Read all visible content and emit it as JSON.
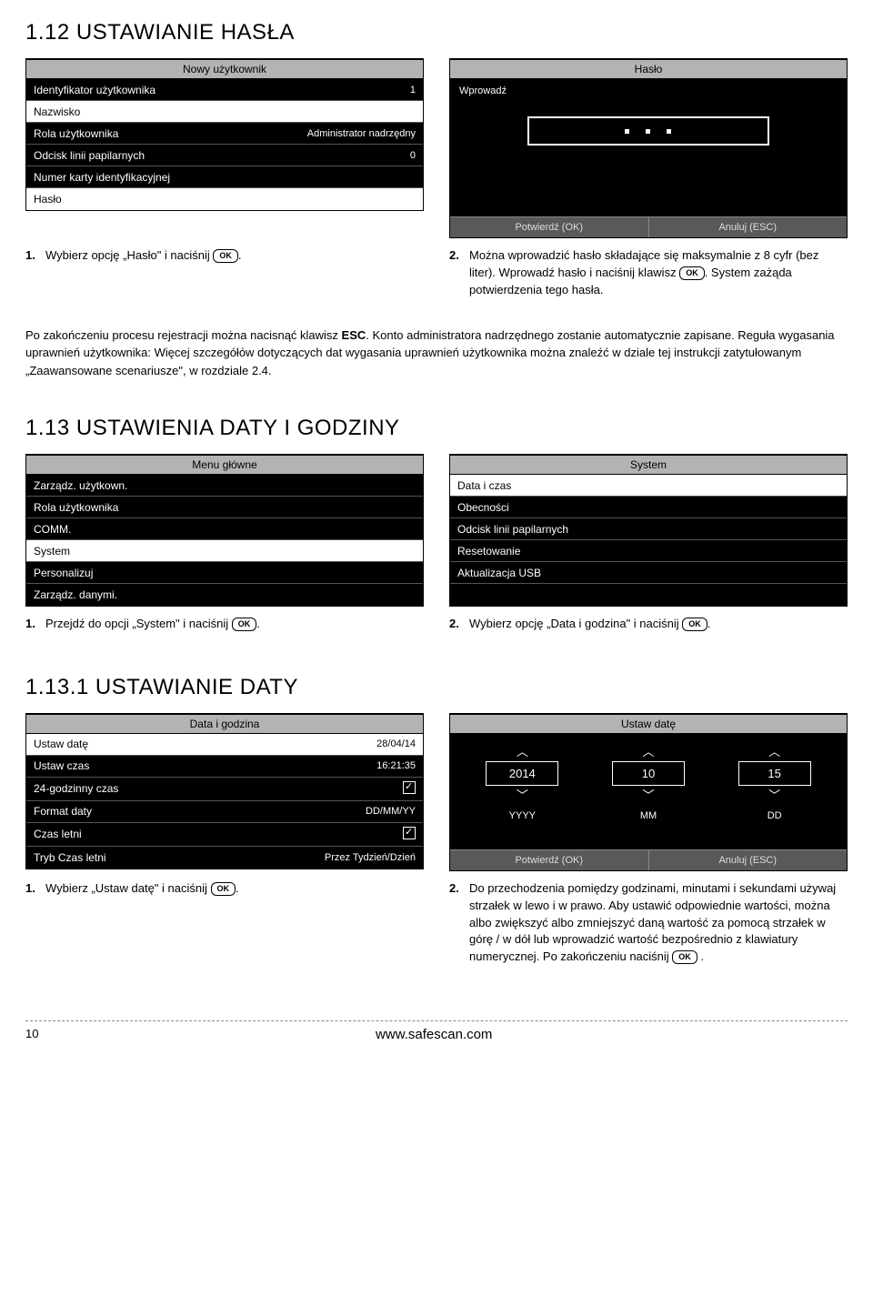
{
  "s112": {
    "heading": "1.12 USTAWIANIE HASŁA",
    "left_panel": {
      "title": "Nowy użytkownik",
      "rows": [
        {
          "label": "Identyfikator użytkownika",
          "value": "1",
          "white": false
        },
        {
          "label": "Nazwisko",
          "value": "",
          "white": true
        },
        {
          "label": "Rola użytkownika",
          "value": "Administrator nadrzędny",
          "white": false
        },
        {
          "label": "Odcisk linii papilarnych",
          "value": "0",
          "white": false
        },
        {
          "label": "Numer karty identyfikacyjnej",
          "value": "",
          "white": false
        },
        {
          "label": "Hasło",
          "value": "",
          "white": true
        }
      ]
    },
    "right_panel": {
      "title": "Hasło",
      "subtitle": "Wprowadź",
      "confirm": "Potwierdź (OK)",
      "cancel": "Anuluj (ESC)"
    },
    "instr1_pre": "Wybierz opcję „Hasło\" i naciśnij ",
    "instr1_post": ".",
    "instr2_a": "Można wprowadzić hasło składające się maksymalnie z 8 cyfr (bez liter). Wprowadź hasło i naciśnij klawisz ",
    "instr2_b": ". System zażąda potwierdzenia tego hasła.",
    "paragraph": "Po zakończeniu procesu rejestracji można nacisnąć klawisz ESC. Konto administratora nadrzędnego zostanie automatycznie zapisane. Reguła wygasania uprawnień użytkownika: Więcej szczegółów dotyczących dat wygasania uprawnień użytkownika można znaleźć w dziale tej instrukcji zatytułowanym „Zaawansowane scenariusze\", w rozdziale 2.4."
  },
  "s113": {
    "heading": "1.13 USTAWIENIA DATY I GODZINY",
    "left_panel": {
      "title": "Menu główne",
      "rows": [
        {
          "label": "Zarządz. użytkown.",
          "white": false
        },
        {
          "label": "Rola użytkownika",
          "white": false
        },
        {
          "label": "COMM.",
          "white": false
        },
        {
          "label": "System",
          "white": true
        },
        {
          "label": "Personalizuj",
          "white": false
        },
        {
          "label": "Zarządz. danymi.",
          "white": false
        }
      ]
    },
    "right_panel": {
      "title": "System",
      "rows": [
        {
          "label": "Data i czas",
          "white": true
        },
        {
          "label": "Obecności",
          "white": false
        },
        {
          "label": "Odcisk linii papilarnych",
          "white": false
        },
        {
          "label": "Resetowanie",
          "white": false
        },
        {
          "label": "Aktualizacja USB",
          "white": false
        },
        {
          "label": "",
          "white": false
        }
      ]
    },
    "instr1_pre": "Przejdź do opcji „System\" i naciśnij ",
    "instr2_pre": "Wybierz opcję „Data i godzina\" i naciśnij "
  },
  "s1131": {
    "heading": "1.13.1 USTAWIANIE DATY",
    "left_panel": {
      "title": "Data i godzina",
      "rows": [
        {
          "label": "Ustaw datę",
          "value": "28/04/14",
          "white": true
        },
        {
          "label": "Ustaw czas",
          "value": "16:21:35",
          "white": false
        },
        {
          "label": "24-godzinny czas",
          "value": "chk",
          "white": false
        },
        {
          "label": "Format daty",
          "value": "DD/MM/YY",
          "white": false
        },
        {
          "label": "Czas letni",
          "value": "chk",
          "white": false
        },
        {
          "label": "Tryb Czas letni",
          "value": "Przez Tydzień/Dzień",
          "white": false
        }
      ]
    },
    "right_panel": {
      "title": "Ustaw datę",
      "spinners": [
        {
          "val": "2014",
          "lbl": "YYYY"
        },
        {
          "val": "10",
          "lbl": "MM"
        },
        {
          "val": "15",
          "lbl": "DD"
        }
      ],
      "confirm": "Potwierdź (OK)",
      "cancel": "Anuluj (ESC)"
    },
    "instr1_pre": "Wybierz „Ustaw datę\" i naciśnij ",
    "instr2_a": "Do przechodzenia pomiędzy godzinami, minutami i sekundami używaj strzałek w lewo i w prawo. Aby ustawić odpowiednie wartości, można albo zwiększyć albo zmniejszyć daną wartość za pomocą strzałek w górę / w dół lub wprowadzić wartość bezpośrednio z klawiatury numerycznej. Po zakończeniu naciśnij "
  },
  "ok_label": "OK",
  "footer": {
    "page": "10",
    "url": "www.safescan.com"
  }
}
